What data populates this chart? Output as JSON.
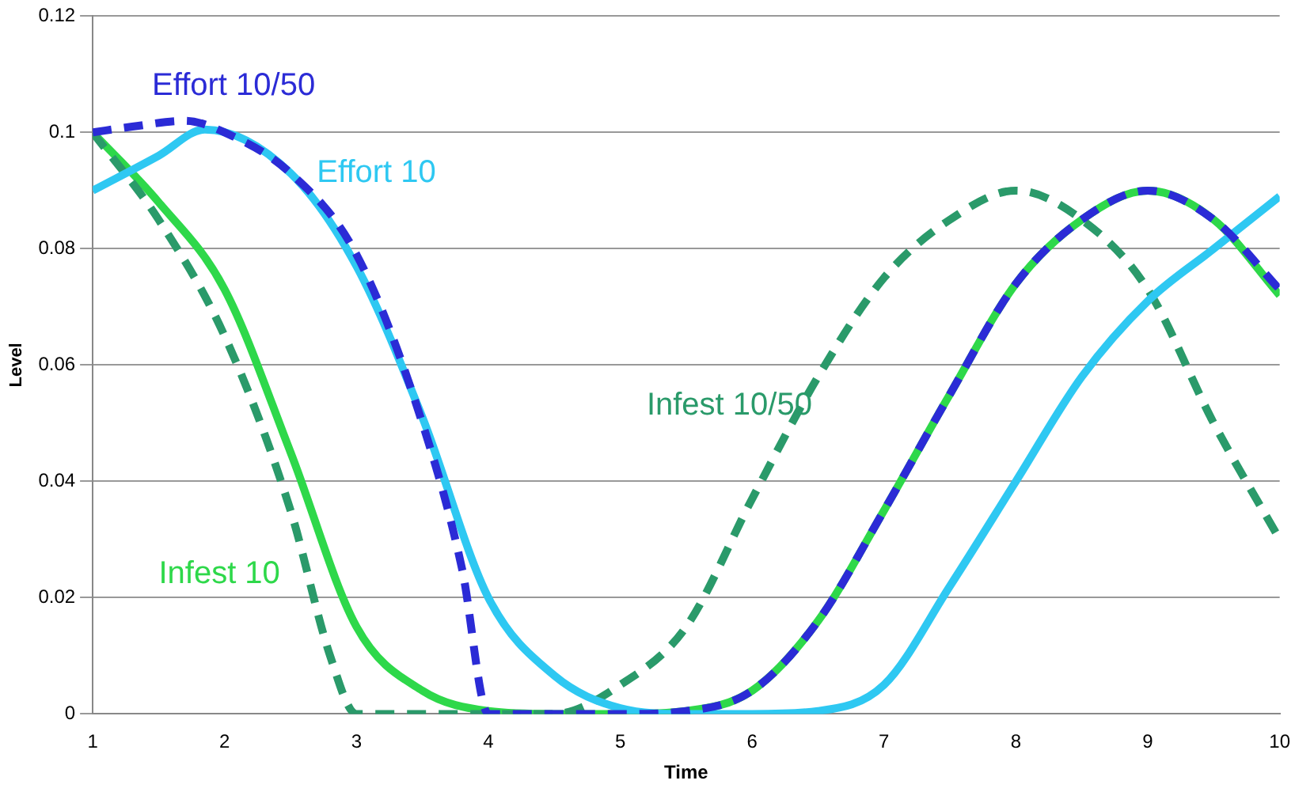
{
  "chart_data": {
    "type": "line",
    "xlabel": "Time",
    "ylabel": "Level",
    "xlim": [
      1,
      10
    ],
    "xticks": [
      1,
      2,
      3,
      4,
      5,
      6,
      7,
      8,
      9,
      10
    ],
    "ylim": [
      0,
      0.12
    ],
    "yticks": [
      0,
      0.02,
      0.04,
      0.06,
      0.08,
      0.1,
      0.12
    ],
    "grid": "y",
    "legend": false,
    "marker": "none",
    "series": [
      {
        "name": "Effort 10/50",
        "color": "#2b2bd6",
        "line_style": "dashed",
        "x": [
          1,
          1.3,
          1.7,
          2,
          2.5,
          3,
          3.5,
          3.8,
          4,
          4.5,
          5,
          5.5,
          6,
          6.5,
          7,
          7.5,
          8,
          8.5,
          9,
          9.5,
          10
        ],
        "values": [
          0.1,
          0.101,
          0.102,
          0.1,
          0.093,
          0.079,
          0.05,
          0.025,
          0,
          0,
          0,
          0.0005,
          0.004,
          0.016,
          0.035,
          0.055,
          0.074,
          0.085,
          0.09,
          0.085,
          0.073
        ]
      },
      {
        "name": "Effort 10",
        "color": "#2ec8f2",
        "line_style": "solid",
        "x": [
          1,
          1.5,
          1.85,
          2.5,
          3,
          3.5,
          4,
          4.5,
          5,
          5.5,
          6,
          6.5,
          7,
          7.5,
          8,
          8.5,
          9,
          9.5,
          10
        ],
        "values": [
          0.09,
          0.096,
          0.1005,
          0.093,
          0.077,
          0.051,
          0.02,
          0.0066,
          0.001,
          0,
          0,
          0.0005,
          0.005,
          0.022,
          0.04,
          0.058,
          0.071,
          0.08,
          0.089
        ]
      },
      {
        "name": "Infest 10/50",
        "color": "#2a9a6a",
        "line_style": "dashed",
        "x": [
          1,
          1.5,
          2,
          2.5,
          2.8,
          3,
          3.5,
          4,
          4.5,
          5,
          5.5,
          6,
          6.5,
          7,
          7.5,
          8,
          8.5,
          9,
          9.5,
          10
        ],
        "values": [
          0.1,
          0.085,
          0.065,
          0.035,
          0.01,
          0,
          0,
          0,
          0,
          0.005,
          0.015,
          0.037,
          0.058,
          0.075,
          0.085,
          0.09,
          0.085,
          0.073,
          0.05,
          0.03
        ]
      },
      {
        "name": "Infest 10",
        "color": "#2ed84a",
        "line_style": "solid",
        "x": [
          1,
          1.5,
          2,
          2.5,
          3,
          3.5,
          4,
          4.5,
          5,
          5.5,
          6,
          6.5,
          7,
          7.5,
          8,
          8.5,
          9,
          9.5,
          10
        ],
        "values": [
          0.1,
          0.088,
          0.073,
          0.045,
          0.015,
          0.004,
          0.0005,
          0,
          0,
          0.0005,
          0.004,
          0.016,
          0.035,
          0.055,
          0.074,
          0.085,
          0.09,
          0.085,
          0.072
        ]
      }
    ]
  }
}
